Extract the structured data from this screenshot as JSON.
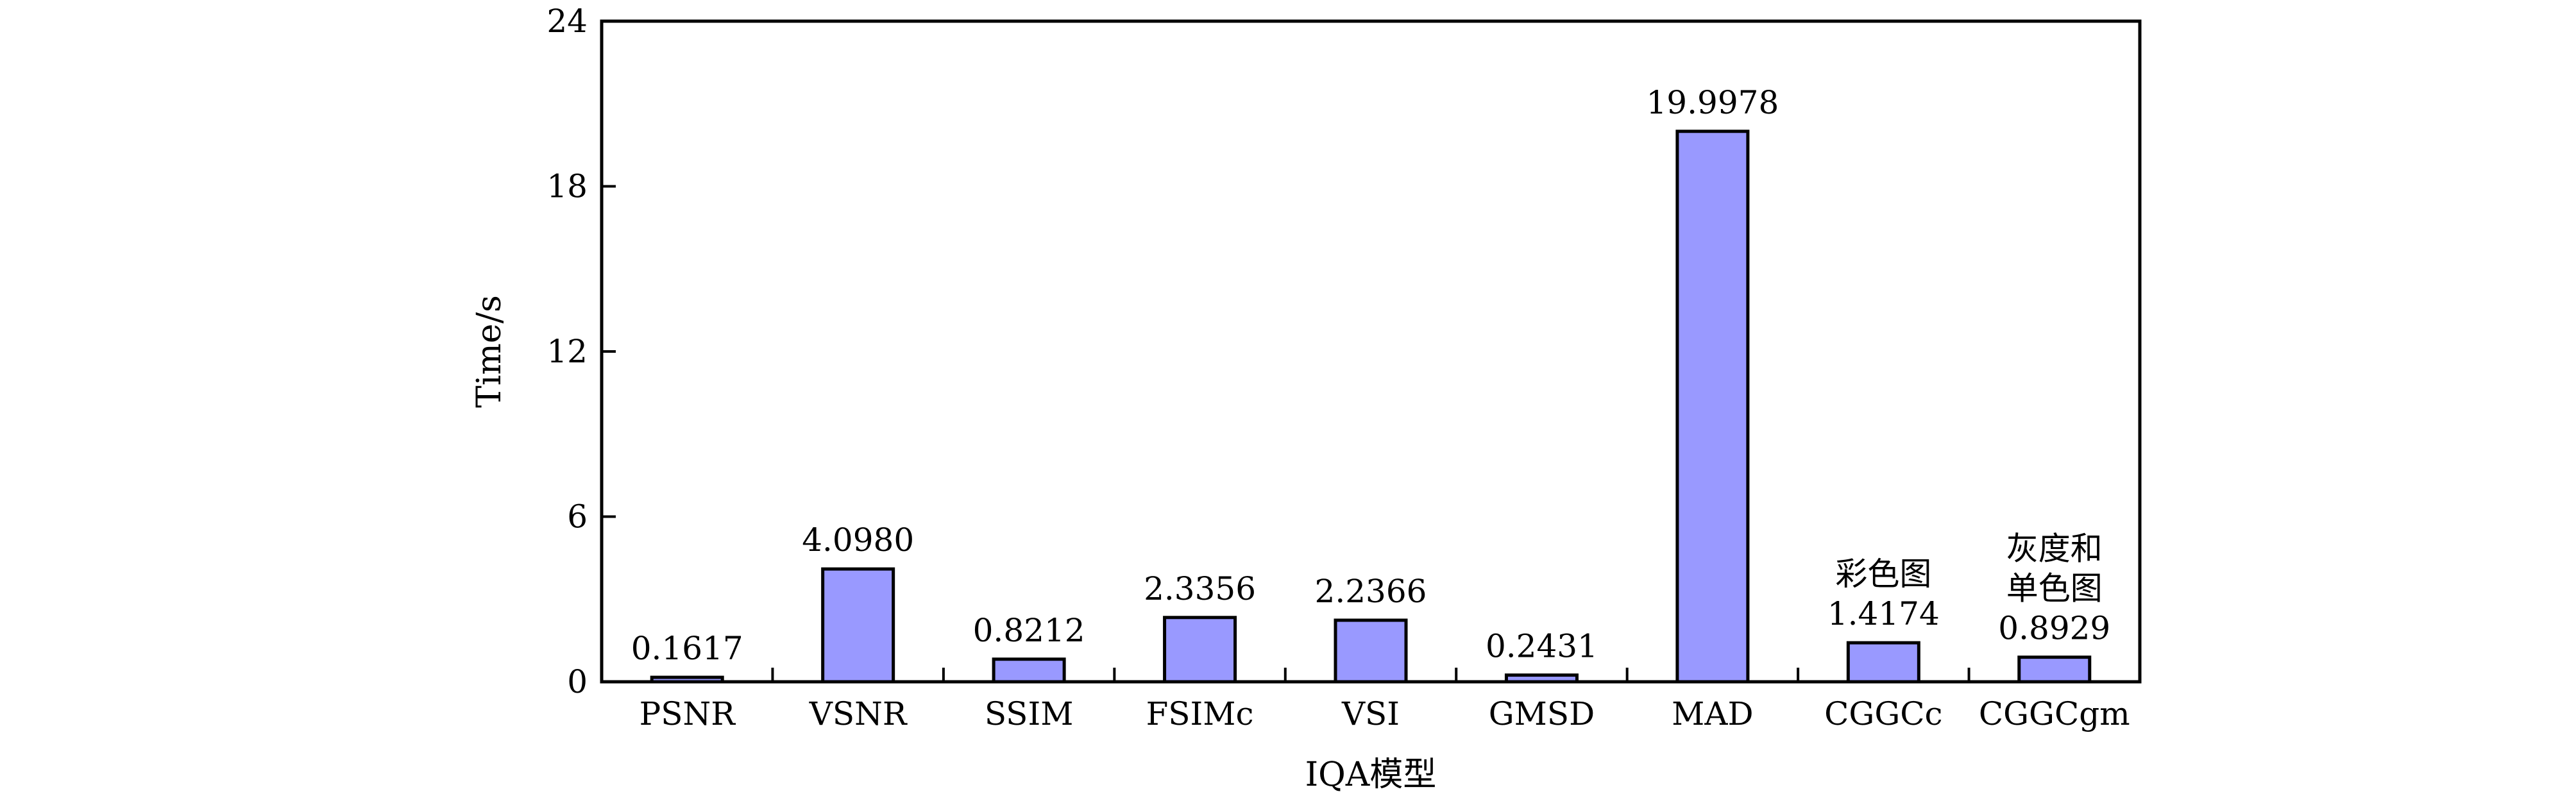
{
  "chart_data": {
    "type": "bar",
    "xlabel": "IQA模型",
    "ylabel": "Time/s",
    "ylim": [
      0,
      24
    ],
    "yticks": [
      "0",
      "6",
      "12",
      "18",
      "24"
    ],
    "categories": [
      "PSNR",
      "VSNR",
      "SSIM",
      "FSIMc",
      "VSI",
      "GMSD",
      "MAD",
      "CGGCc",
      "CGGCgm"
    ],
    "values": [
      0.1617,
      4.098,
      0.8212,
      2.3356,
      2.2366,
      0.2431,
      19.9978,
      1.4174,
      0.8929
    ],
    "value_labels": [
      "0.1617",
      "4.0980",
      "0.8212",
      "2.3356",
      "2.2366",
      "0.2431",
      "19.9978",
      "1.4174",
      "0.8929"
    ],
    "annotations": [
      {
        "category": "CGGCc",
        "lines": [
          "彩色图"
        ]
      },
      {
        "category": "CGGCgm",
        "lines": [
          "灰度和",
          "单色图"
        ]
      }
    ],
    "bar_color": "#9999ff",
    "grid": false,
    "legend": "none"
  }
}
